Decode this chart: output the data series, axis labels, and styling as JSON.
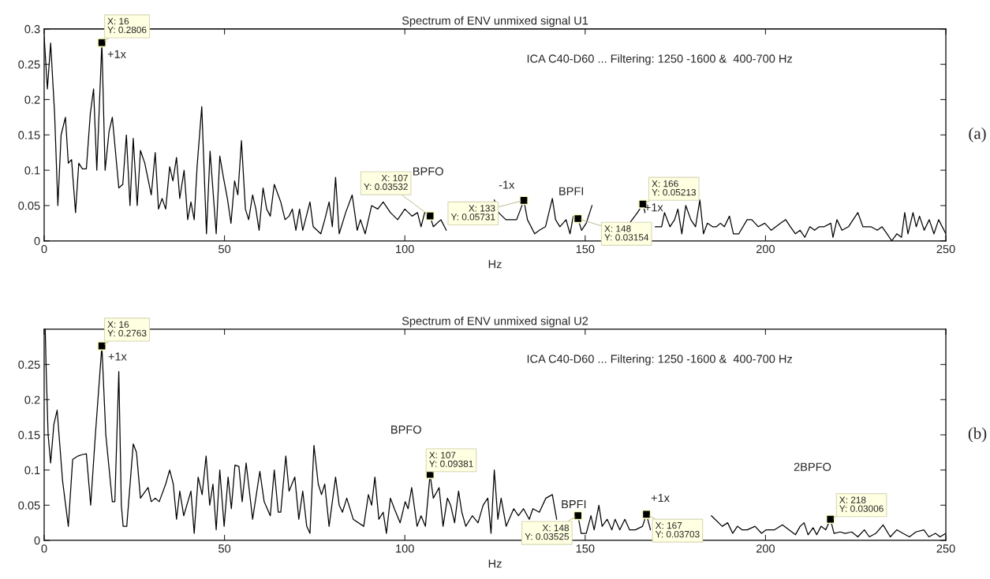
{
  "chart_data": [
    {
      "type": "line",
      "title": "Spectrum of ENV unmixed signal U1",
      "xlabel": "Hz",
      "xlim": [
        0,
        250
      ],
      "xticks": [
        0,
        50,
        100,
        150,
        200,
        250
      ],
      "ylim": [
        0,
        0.3
      ],
      "yticks": [
        0,
        0.05,
        0.1,
        0.15,
        0.2,
        0.25,
        0.3
      ],
      "grid": false,
      "legend": false,
      "series": [
        {
          "color": "#000000",
          "x": [
            0,
            0.9,
            1.8,
            2.9,
            3.8,
            4.7,
            5.9,
            6.7,
            7.6,
            8.7,
            9.6,
            10.6,
            11.7,
            12.8,
            13.7,
            14.6,
            16,
            16.9,
            18,
            18.9,
            20.7,
            21.8,
            22.8,
            23.8,
            24.7,
            25.8,
            26.7,
            27.9,
            29.7,
            30.8,
            31.7,
            32.7,
            33.7,
            34.8,
            35.7,
            36.7,
            37.6,
            38.8,
            39.8,
            40.7,
            41.6,
            42.4,
            43.7,
            45.0,
            46.0,
            47.7,
            48.7,
            49.7,
            50.8,
            51.8,
            52.8,
            53.7,
            54.7,
            55.8,
            56.7,
            57.8,
            58.7,
            59.6,
            60.7,
            61.7,
            62.7,
            63.8,
            65.6,
            66.8,
            67.9,
            68.8,
            69.8,
            70.8,
            71.7,
            73.7,
            74.6,
            76.7,
            77.8,
            79,
            79.9,
            80.8,
            81.8,
            83.6,
            85.4,
            86.8,
            87.7,
            89,
            90.8,
            92.5,
            94,
            96,
            98,
            100,
            102,
            103.5,
            104.5,
            105.5,
            107,
            107.9,
            110,
            111.5,
            113,
            115,
            117,
            119,
            121,
            123,
            124.8,
            126,
            128,
            131,
            133,
            134,
            136,
            137.3,
            139,
            140.9,
            141.8,
            143,
            144.7,
            145.8,
            146.7,
            148,
            149,
            150.3,
            151.9,
            153,
            156,
            159.6,
            162.3,
            164.5,
            166,
            166.6,
            167.7,
            169.4,
            171.2,
            172,
            173.5,
            174.8,
            175.7,
            176.8,
            177.9,
            179.3,
            180.6,
            181.8,
            182.8,
            183.9,
            185.3,
            186.4,
            187.5,
            188.6,
            190,
            191.1,
            192.6,
            194.9,
            196.2,
            198,
            199.8,
            201.6,
            202.9,
            204.2,
            205.6,
            206.9,
            208.3,
            209.6,
            210.9,
            212.3,
            213.6,
            214.9,
            216.3,
            218.1,
            218.7,
            219.8,
            221.2,
            223,
            225.6,
            227,
            229.2,
            231,
            232.3,
            233.7,
            235,
            236.4,
            237.7,
            238.6,
            239.5,
            240.9,
            241.8,
            242.7,
            244,
            245.4,
            246.7,
            248,
            250
          ],
          "values": [
            0.29,
            0.215,
            0.28,
            0.18,
            0.05,
            0.15,
            0.175,
            0.11,
            0.115,
            0.04,
            0.11,
            0.102,
            0.102,
            0.18,
            0.215,
            0.1,
            0.2806,
            0.1,
            0.155,
            0.175,
            0.075,
            0.08,
            0.15,
            0.05,
            0.145,
            0.05,
            0.128,
            0.11,
            0.065,
            0.125,
            0.045,
            0.06,
            0.045,
            0.105,
            0.085,
            0.118,
            0.06,
            0.1,
            0.03,
            0.055,
            0.03,
            0.105,
            0.19,
            0.01,
            0.127,
            0.01,
            0.12,
            0.09,
            0.06,
            0.025,
            0.085,
            0.065,
            0.142,
            0.045,
            0.03,
            0.065,
            0.045,
            0.015,
            0.075,
            0.045,
            0.035,
            0.08,
            0.055,
            0.03,
            0.035,
            0.045,
            0.015,
            0.045,
            0.015,
            0.055,
            0.02,
            0.01,
            0.03,
            0.055,
            0.02,
            0.09,
            0.01,
            0.04,
            0.065,
            0.015,
            0.03,
            0.01,
            0.05,
            0.045,
            0.055,
            0.04,
            0.03,
            0.045,
            0.035,
            0.04,
            0.02,
            0.04,
            0.03532,
            0.02,
            0.03,
            0.015,
            null,
            null,
            null,
            null,
            null,
            null,
            0.058,
            0.04,
            0.03,
            0.03,
            0.05731,
            0.03,
            0.01,
            0.015,
            0.02,
            0.06,
            0.03,
            0.02,
            0.03,
            0.01,
            0.035,
            0.03154,
            0.015,
            0.025,
            0.05,
            null,
            null,
            null,
            0.025,
            0.04,
            0.05213,
            0.04,
            null,
            0.02,
            0.02,
            0.04,
            0.02,
            0.03,
            0.045,
            0.01,
            0.05,
            0.03,
            0.02,
            0.058,
            0.01,
            0.025,
            0.02,
            0.02,
            0.025,
            0.02,
            0.035,
            0.01,
            0.01,
            0.03,
            0.03,
            0.02,
            0.025,
            0.015,
            0.02,
            0.025,
            0.03,
            0.02,
            0.01,
            0.015,
            0.005,
            0.02,
            0.015,
            0.02,
            0.02,
            0.025,
            0.005,
            0.03,
            0.015,
            0.02,
            0.04,
            0.02,
            0.02,
            0.015,
            0.02,
            0.01,
            0.0,
            0.01,
            0.005,
            0.04,
            0.01,
            0.04,
            0.02,
            0.035,
            0.015,
            0.03,
            0.01,
            0.03,
            0.01
          ]
        },
        {
          "type": "scatter",
          "color": "#000000",
          "marker": "square",
          "x": [
            16,
            107,
            133,
            148,
            166
          ],
          "values": [
            0.2806,
            0.03532,
            0.05731,
            0.03154,
            0.05213
          ]
        }
      ],
      "annotations": [
        "ICA C40-D60 ... Filtering: 1250 -1600 &  400-700 Hz",
        "(a)",
        {
          "text": "X: 16\nY: 0.2806",
          "x": 16,
          "y": 0.2806
        },
        {
          "text": "X: 107\nY: 0.03532",
          "x": 107,
          "y": 0.03532
        },
        {
          "text": "X: 133\nY: 0.05731",
          "x": 133,
          "y": 0.05731
        },
        {
          "text": "X: 148\nY: 0.03154",
          "x": 148,
          "y": 0.03154
        },
        {
          "text": "X: 166\nY: 0.05213",
          "x": 166,
          "y": 0.05213
        },
        "+1x",
        "BPFO",
        "-1x",
        "BPFI",
        "+1x"
      ]
    },
    {
      "type": "line",
      "title": "Spectrum of ENV unmixed signal U2",
      "xlabel": "Hz",
      "xlim": [
        0,
        250
      ],
      "xticks": [
        0,
        50,
        100,
        150,
        200,
        250
      ],
      "ylim": [
        0,
        0.3
      ],
      "yticks": [
        0,
        0.05,
        0.1,
        0.15,
        0.2,
        0.25
      ],
      "grid": false,
      "legend": false,
      "series": [
        {
          "color": "#000000",
          "x": [
            0.3,
            0.6,
            1.1,
            1.8,
            2.7,
            3.6,
            5.1,
            6.7,
            7.9,
            9.4,
            10.6,
            11.7,
            12.9,
            14.2,
            16,
            17.1,
            18.9,
            19.6,
            20.7,
            21.4,
            21.9,
            22.9,
            24.7,
            25.6,
            26.7,
            28.8,
            29.7,
            30.8,
            31.9,
            33.7,
            34.8,
            35.8,
            36.7,
            37.6,
            38.7,
            40.7,
            41.6,
            42.7,
            43.8,
            44.9,
            45.9,
            46.8,
            47.7,
            48.7,
            49.9,
            51,
            51.9,
            52.9,
            54,
            54.9,
            56,
            57.8,
            59.8,
            61,
            62.7,
            63.8,
            64.9,
            65.6,
            67,
            67.9,
            69.5,
            70.6,
            71.7,
            72.8,
            73.7,
            74.8,
            76,
            76.9,
            77.8,
            79,
            80.8,
            81.8,
            82.7,
            83.9,
            85.7,
            88.6,
            89.9,
            90.8,
            91.7,
            92.8,
            94,
            94.9,
            96,
            97.1,
            98.7,
            100.1,
            100.9,
            101.9,
            103.4,
            104.5,
            105.7,
            107,
            107.9,
            109.5,
            110.6,
            111.8,
            112.7,
            113.8,
            114.9,
            115.8,
            116.9,
            118.7,
            120.3,
            121.7,
            123,
            123.9,
            124.8,
            125.8,
            126.7,
            128.1,
            130.2,
            131.5,
            132.9,
            134.5,
            135.5,
            137.3,
            139.1,
            140.9,
            142.1,
            145,
            148,
            148.9,
            150.3,
            151.6,
            152.5,
            153.8,
            154.7,
            156.1,
            157.4,
            158.3,
            159.6,
            161,
            162.3,
            163.9,
            165.9,
            167,
            168.1,
            171,
            175.7,
            180,
            185,
            188,
            189.5,
            190.9,
            192.2,
            193.5,
            194.9,
            197.1,
            198.9,
            200.2,
            202.5,
            204.7,
            206.5,
            208.3,
            209.6,
            210.7,
            211.8,
            213.2,
            214.2,
            215.4,
            216.7,
            218,
            219,
            220.7,
            222.1,
            223.9,
            225.6,
            227.4,
            228.8,
            230.6,
            232.6,
            234.6,
            236.4,
            238.1,
            239.9,
            241.7,
            243.9,
            245.3,
            247.1,
            248.4,
            250
          ],
          "values": [
            0.3,
            0.235,
            0.15,
            0.11,
            0.165,
            0.185,
            0.085,
            0.02,
            0.115,
            0.12,
            0.122,
            0.123,
            0.05,
            0.15,
            0.2763,
            0.15,
            0.055,
            0.055,
            0.24,
            0.05,
            0.02,
            0.02,
            0.137,
            0.125,
            0.06,
            0.075,
            0.055,
            0.06,
            0.055,
            0.08,
            0.1,
            0.08,
            0.03,
            0.07,
            0.035,
            0.07,
            0.01,
            0.09,
            0.065,
            0.12,
            0.05,
            0.08,
            0.015,
            0.1,
            0.02,
            0.09,
            0.045,
            0.107,
            0.105,
            0.055,
            0.11,
            0.03,
            0.098,
            0.055,
            0.035,
            0.1,
            0.04,
            0.04,
            0.12,
            0.07,
            0.09,
            0.03,
            0.07,
            0.02,
            0.01,
            0.135,
            0.08,
            0.065,
            0.08,
            0.02,
            0.09,
            0.05,
            0.04,
            0.06,
            0.03,
            0.02,
            0.065,
            0.05,
            0.09,
            0.03,
            0.04,
            0.01,
            0.06,
            0.045,
            0.025,
            0.055,
            0.045,
            0.075,
            0.02,
            0.035,
            0.02,
            0.09381,
            0.06,
            0.075,
            0.02,
            0.06,
            0.05,
            0.025,
            0.07,
            0.04,
            0.02,
            0.035,
            0.025,
            0.05,
            0.06,
            0.01,
            0.1,
            0.03,
            0.06,
            0.02,
            0.045,
            0.035,
            0.045,
            0.03,
            0.045,
            0.04,
            0.06,
            0.065,
            0.03,
            null,
            0.03525,
            0.01,
            0.01,
            0.035,
            0.015,
            0.05,
            0.02,
            0.03,
            0.015,
            0.03,
            0.015,
            0.03,
            0.015,
            0.015,
            0.02,
            0.03703,
            0.015,
            null,
            null,
            null,
            0.035,
            0.02,
            0.025,
            0.01,
            0.02,
            0.015,
            0.015,
            0.02,
            0.01,
            0.015,
            0.015,
            0.022,
            0.015,
            0.008,
            0.02,
            0.025,
            0.008,
            0.018,
            0.008,
            0.02,
            0.015,
            0.03006,
            0.01,
            0.012,
            0.01,
            0.012,
            0.005,
            0.015,
            0.005,
            0.01,
            0.022,
            0.005,
            0.015,
            0.01,
            0.005,
            0.012,
            0.015,
            0.005,
            0.01,
            0.005,
            0.01
          ]
        },
        {
          "type": "scatter",
          "color": "#000000",
          "marker": "square",
          "x": [
            16,
            107,
            148,
            167,
            218
          ],
          "values": [
            0.2763,
            0.09381,
            0.03525,
            0.03703,
            0.03006
          ]
        }
      ],
      "annotations": [
        "ICA C40-D60 ... Filtering: 1250 -1600 &  400-700 Hz",
        "(b)",
        {
          "text": "X: 16\nY: 0.2763",
          "x": 16,
          "y": 0.2763
        },
        {
          "text": "X: 107\nY: 0.09381",
          "x": 107,
          "y": 0.09381
        },
        {
          "text": "X: 148\nY: 0.03525",
          "x": 148,
          "y": 0.03525
        },
        {
          "text": "X: 167\nY: 0.03703",
          "x": 167,
          "y": 0.03703
        },
        {
          "text": "X: 218\nY: 0.03006",
          "x": 218,
          "y": 0.03006
        },
        "+1x",
        "BPFO",
        "BPFI",
        "+1x",
        "2BPFO"
      ]
    }
  ]
}
